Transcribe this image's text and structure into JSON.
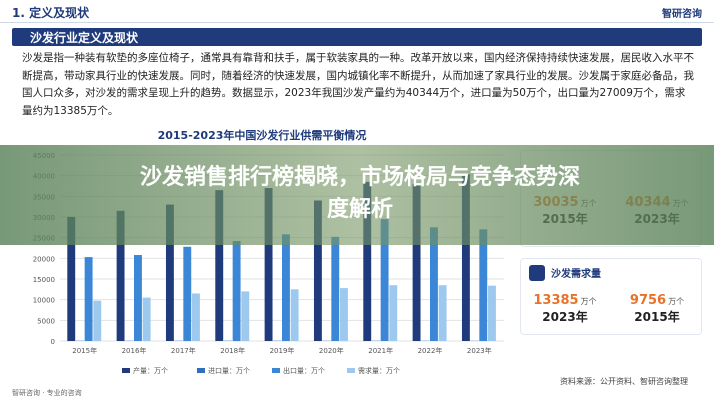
{
  "header": {
    "section": "1. 定义及现状",
    "logo": "智研咨询"
  },
  "banner": "沙发行业定义及现状",
  "paragraph": "沙发是指一种装有软垫的多座位椅子，通常具有靠背和扶手，属于软装家具的一种。改革开放以来，国内经济保持持续快速发展，居民收入水平不断提高，带动家具行业的快速发展。同时，随着经济的快速发展，国内城镇化率不断提升，从而加速了家具行业的发展。沙发属于家庭必备品，我国人口众多，对沙发的需求呈现上升的趋势。数据显示，2023年我国沙发产量约为40344万个，进口量为50万个，出口量为27009万个，需求量约为13385万个。",
  "overlay": [
    "沙发销售排行榜揭晓，市场格局与竞争态势深",
    "度解析"
  ],
  "chart_data": {
    "type": "bar",
    "title": "2015-2023年中国沙发行业供需平衡情况",
    "categories": [
      "2015年",
      "2016年",
      "2017年",
      "2018年",
      "2019年",
      "2020年",
      "2021年",
      "2022年",
      "2023年"
    ],
    "series": [
      {
        "name": "产量：万个",
        "color": "#1f3b7c",
        "values": [
          30035,
          31500,
          33000,
          36500,
          37000,
          34000,
          38500,
          38000,
          40344
        ]
      },
      {
        "name": "进口量：万个",
        "color": "#2f6fc0",
        "values": [
          60,
          55,
          60,
          65,
          60,
          50,
          60,
          55,
          50
        ]
      },
      {
        "name": "出口量：万个",
        "color": "#3b86d6",
        "values": [
          20300,
          20800,
          22800,
          24200,
          25800,
          25200,
          29500,
          27500,
          27009
        ]
      },
      {
        "name": "需求量：万个",
        "color": "#9dc9ef",
        "values": [
          9756,
          10500,
          11500,
          12000,
          12500,
          12800,
          13500,
          13500,
          13385
        ]
      }
    ],
    "ylim": [
      0,
      45000
    ],
    "yticks": [
      0,
      5000,
      10000,
      15000,
      20000,
      25000,
      30000,
      35000,
      40000,
      45000
    ],
    "grid": true
  },
  "cards": [
    {
      "items": [
        {
          "value": "30035",
          "unit": "万个",
          "year": "2015年"
        },
        {
          "value": "40344",
          "unit": "万个",
          "year": "2023年"
        }
      ]
    },
    {
      "title": "沙发需求量",
      "items": [
        {
          "value": "13385",
          "unit": "万个",
          "year": "2023年"
        },
        {
          "value": "9756",
          "unit": "万个",
          "year": "2015年"
        }
      ]
    }
  ],
  "footer": {
    "left": "智研咨询 · 专业的咨询",
    "source": "资料来源：公开资料、智研咨询整理"
  }
}
